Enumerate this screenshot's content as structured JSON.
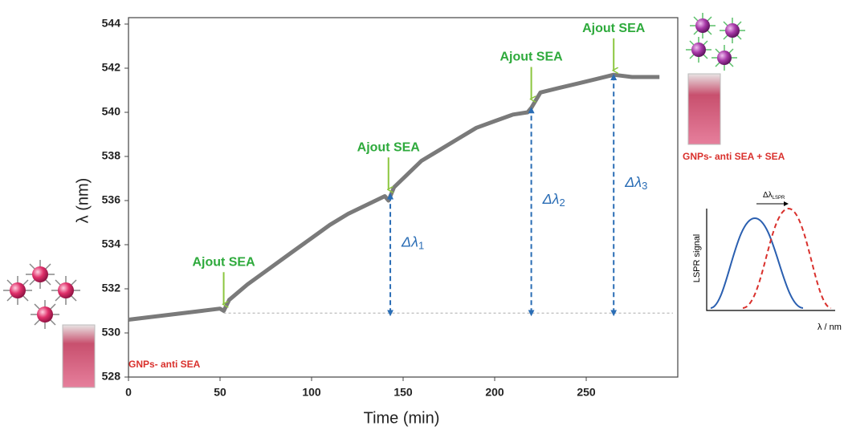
{
  "chart_data": {
    "type": "line",
    "x_label": "Time (min)",
    "y_label": "λ (nm)",
    "xlim": [
      0,
      300
    ],
    "ylim": [
      528,
      544
    ],
    "xticks": [
      0,
      50,
      100,
      150,
      200,
      250
    ],
    "yticks": [
      528,
      530,
      532,
      534,
      536,
      538,
      540,
      542,
      544
    ],
    "series": [
      {
        "color": "#7a7a7a",
        "x": [
          0,
          20,
          40,
          50,
          52,
          55,
          65,
          75,
          90,
          100,
          110,
          120,
          130,
          140,
          142,
          145,
          150,
          160,
          170,
          180,
          190,
          200,
          210,
          218,
          220,
          225,
          235,
          245,
          255,
          265,
          275,
          290
        ],
        "values": [
          530.6,
          530.8,
          531.0,
          531.1,
          531.0,
          531.5,
          532.2,
          532.8,
          533.7,
          534.3,
          534.9,
          535.4,
          535.8,
          536.2,
          536.0,
          536.6,
          537.0,
          537.8,
          538.3,
          538.8,
          539.3,
          539.6,
          539.9,
          540.0,
          540.2,
          540.9,
          541.1,
          541.3,
          541.5,
          541.7,
          541.6,
          541.6
        ]
      }
    ],
    "baseline": 530.9,
    "additions": [
      {
        "text": "Ajout SEA",
        "x": 52,
        "y": 531.3
      },
      {
        "text": "Ajout SEA",
        "x": 142,
        "y": 536.5
      },
      {
        "text": "Ajout SEA",
        "x": 220,
        "y": 540.6
      },
      {
        "text": "Ajout SEA",
        "x": 265,
        "y": 541.9
      }
    ],
    "shifts": [
      {
        "text": "Δλ",
        "sub": "1",
        "x": 143,
        "from": 530.9,
        "to": 536.2
      },
      {
        "text": "Δλ",
        "sub": "2",
        "x": 220,
        "from": 530.9,
        "to": 540.1
      },
      {
        "text": "Δλ",
        "sub": "3",
        "x": 265,
        "from": 530.9,
        "to": 541.6
      }
    ],
    "state_start": "GNPs- anti SEA",
    "state_end": "GNPs- anti SEA + SEA",
    "inset": {
      "y_label": "LSPR signal",
      "x_label": "λ / nm",
      "shift_label": "Δλ",
      "shift_sub": "LSPR"
    }
  }
}
